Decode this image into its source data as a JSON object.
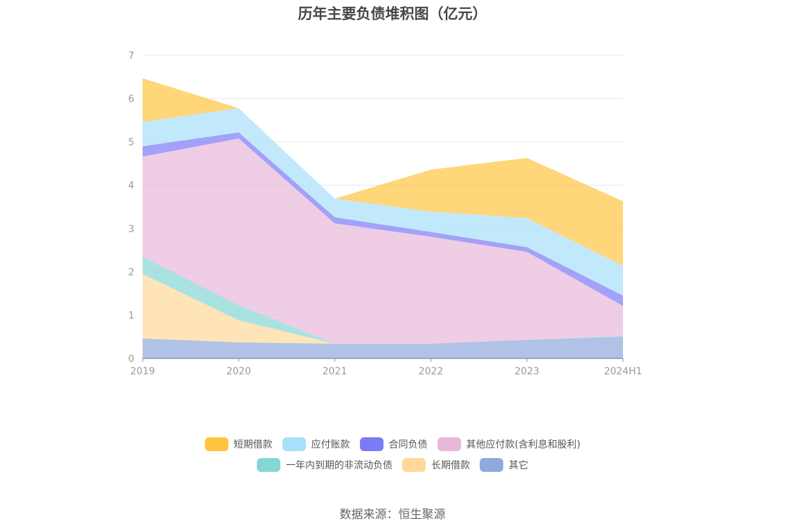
{
  "title": "历年主要负债堆积图（亿元）",
  "source": "数据来源：恒生聚源",
  "chart_data": {
    "type": "area",
    "stacked": true,
    "title": "历年主要负债堆积图（亿元）",
    "xlabel": "",
    "ylabel": "",
    "categories": [
      "2019",
      "2020",
      "2021",
      "2022",
      "2023",
      "2024H1"
    ],
    "y_ticks": [
      "0",
      "1",
      "2",
      "3",
      "4",
      "5",
      "6",
      "7"
    ],
    "ylim": [
      0,
      7
    ],
    "grid": true,
    "legend_position": "bottom",
    "series": [
      {
        "name": "其它",
        "color": "#8FAADC",
        "values": [
          0.46,
          0.37,
          0.34,
          0.34,
          0.43,
          0.5
        ]
      },
      {
        "name": "长期借款",
        "color": "#FFD89A",
        "values": [
          1.49,
          0.51,
          0.0,
          0.0,
          0.0,
          0.0
        ]
      },
      {
        "name": "一年内到期的非流动负债",
        "color": "#86D6D6",
        "values": [
          0.4,
          0.35,
          0.0,
          0.0,
          0.0,
          0.02
        ]
      },
      {
        "name": "其他应付款(含利息和股利)",
        "color": "#E8B8D8",
        "values": [
          2.31,
          3.85,
          2.78,
          2.47,
          2.03,
          0.69
        ]
      },
      {
        "name": "合同负债",
        "color": "#7B7BF5",
        "values": [
          0.24,
          0.14,
          0.14,
          0.11,
          0.11,
          0.24
        ]
      },
      {
        "name": "应付账款",
        "color": "#A8E0FA",
        "values": [
          0.56,
          0.56,
          0.43,
          0.47,
          0.67,
          0.69
        ]
      },
      {
        "name": "短期借款",
        "color": "#FFC440",
        "values": [
          1.01,
          0.0,
          0.0,
          0.97,
          1.39,
          1.49
        ]
      }
    ]
  },
  "legend": {
    "row1": [
      {
        "name": "短期借款",
        "color": "#FFC440"
      },
      {
        "name": "应付账款",
        "color": "#A8E0FA"
      },
      {
        "name": "合同负债",
        "color": "#7B7BF5"
      },
      {
        "name": "其他应付款(含利息和股利)",
        "color": "#E8B8D8"
      }
    ],
    "row2": [
      {
        "name": "一年内到期的非流动负债",
        "color": "#86D6D6"
      },
      {
        "name": "长期借款",
        "color": "#FFD89A"
      },
      {
        "name": "其它",
        "color": "#8FAADC"
      }
    ]
  }
}
